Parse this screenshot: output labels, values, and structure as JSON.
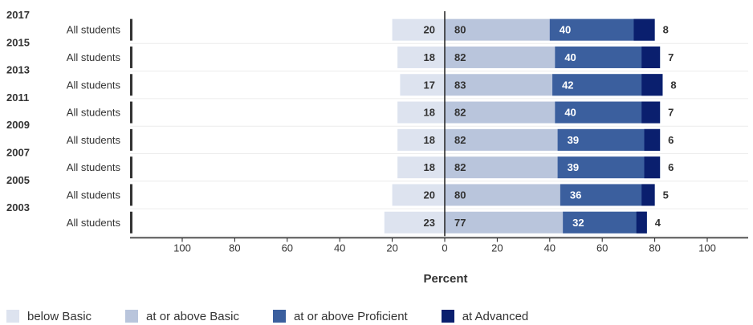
{
  "chart_data": {
    "type": "bar",
    "orientation": "horizontal-diverging",
    "xlabel": "Percent",
    "xlim": [
      -120,
      120
    ],
    "xticks": [
      {
        "value": -100,
        "label": "100"
      },
      {
        "value": -80,
        "label": "80"
      },
      {
        "value": -60,
        "label": "60"
      },
      {
        "value": -40,
        "label": "40"
      },
      {
        "value": -20,
        "label": "20"
      },
      {
        "value": 0,
        "label": "0"
      },
      {
        "value": 20,
        "label": "20"
      },
      {
        "value": 40,
        "label": "40"
      },
      {
        "value": 60,
        "label": "60"
      },
      {
        "value": 80,
        "label": "80"
      },
      {
        "value": 100,
        "label": "100"
      }
    ],
    "grid": true,
    "legend_position": "bottom",
    "rows": [
      {
        "year": "2017",
        "group": "All students",
        "below_basic": 20,
        "at_or_above_basic": 80,
        "at_or_above_proficient": 40,
        "at_advanced": 8
      },
      {
        "year": "2015",
        "group": "All students",
        "below_basic": 18,
        "at_or_above_basic": 82,
        "at_or_above_proficient": 40,
        "at_advanced": 7
      },
      {
        "year": "2013",
        "group": "All students",
        "below_basic": 17,
        "at_or_above_basic": 83,
        "at_or_above_proficient": 42,
        "at_advanced": 8
      },
      {
        "year": "2011",
        "group": "All students",
        "below_basic": 18,
        "at_or_above_basic": 82,
        "at_or_above_proficient": 40,
        "at_advanced": 7
      },
      {
        "year": "2009",
        "group": "All students",
        "below_basic": 18,
        "at_or_above_basic": 82,
        "at_or_above_proficient": 39,
        "at_advanced": 6
      },
      {
        "year": "2007",
        "group": "All students",
        "below_basic": 18,
        "at_or_above_basic": 82,
        "at_or_above_proficient": 39,
        "at_advanced": 6
      },
      {
        "year": "2005",
        "group": "All students",
        "below_basic": 20,
        "at_or_above_basic": 80,
        "at_or_above_proficient": 36,
        "at_advanced": 5
      },
      {
        "year": "2003",
        "group": "All students",
        "below_basic": 23,
        "at_or_above_basic": 77,
        "at_or_above_proficient": 32,
        "at_advanced": 4
      }
    ],
    "series": [
      {
        "key": "below_basic",
        "name": "below Basic",
        "color": "#dde3ef"
      },
      {
        "key": "at_or_above_basic",
        "name": "at or above Basic",
        "color": "#b9c5dc"
      },
      {
        "key": "at_or_above_proficient",
        "name": "at or above Proficient",
        "color": "#3b5f9e"
      },
      {
        "key": "at_advanced",
        "name": "at Advanced",
        "color": "#0a1f6e"
      }
    ]
  },
  "legend": {
    "items": [
      {
        "label": "below Basic",
        "color": "#dde3ef"
      },
      {
        "label": "at or above Basic",
        "color": "#b9c5dc"
      },
      {
        "label": "at or above Proficient",
        "color": "#3b5f9e"
      },
      {
        "label": "at Advanced",
        "color": "#0a1f6e"
      }
    ]
  }
}
